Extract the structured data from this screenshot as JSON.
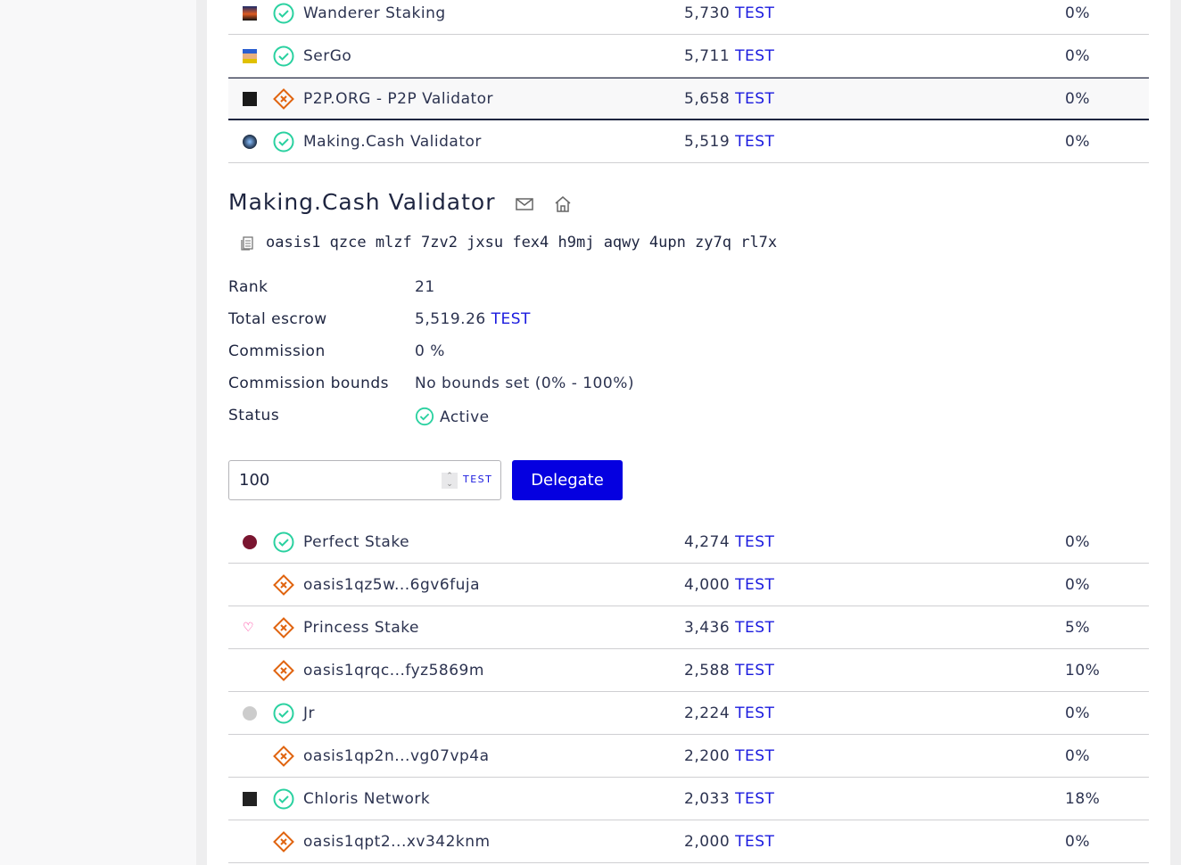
{
  "colors": {
    "accent": "#0500e0",
    "active": "#2ad1a0",
    "inactive": "#e0640f"
  },
  "validators_top": [
    {
      "name": "Wanderer Staking",
      "escrow": "5,730",
      "unit": "TEST",
      "commission": "0%",
      "status": "active",
      "avatar": "wanderer"
    },
    {
      "name": "SerGo",
      "escrow": "5,711",
      "unit": "TEST",
      "commission": "0%",
      "status": "active",
      "avatar": "sergo"
    },
    {
      "name": "P2P.ORG - P2P Validator",
      "escrow": "5,658",
      "unit": "TEST",
      "commission": "0%",
      "status": "inactive",
      "avatar": "p2p"
    },
    {
      "name": "Making.Cash Validator",
      "escrow": "5,519",
      "unit": "TEST",
      "commission": "0%",
      "status": "active",
      "avatar": "makingcash",
      "selected": true
    }
  ],
  "details": {
    "title": "Making.Cash Validator",
    "email_icon": "mail-icon",
    "website_icon": "home-icon",
    "address": "oasis1 qzce mlzf 7zv2 jxsu fex4 h9mj aqwy 4upn zy7q rl7x",
    "rows": [
      {
        "label": "Rank",
        "value": "21"
      },
      {
        "label": "Total escrow",
        "value": "5,519.26",
        "unit": "TEST"
      },
      {
        "label": "Commission",
        "value": "0 %"
      },
      {
        "label": "Commission bounds",
        "value": "No bounds set (0% - 100%)"
      },
      {
        "label": "Status",
        "value": "Active"
      }
    ],
    "amount": "100",
    "amount_unit": "TEST",
    "delegate_label": "Delegate"
  },
  "validators_bottom": [
    {
      "name": "Perfect Stake",
      "escrow": "4,274",
      "unit": "TEST",
      "commission": "0%",
      "status": "active",
      "avatar": "perfect"
    },
    {
      "name": "oasis1qz5w...6gv6fuja",
      "escrow": "4,000",
      "unit": "TEST",
      "commission": "0%",
      "status": "inactive"
    },
    {
      "name": "Princess Stake",
      "escrow": "3,436",
      "unit": "TEST",
      "commission": "5%",
      "status": "inactive",
      "avatar": "heart"
    },
    {
      "name": "oasis1qrqc...fyz5869m",
      "escrow": "2,588",
      "unit": "TEST",
      "commission": "10%",
      "status": "inactive"
    },
    {
      "name": "Jr",
      "escrow": "2,224",
      "unit": "TEST",
      "commission": "0%",
      "status": "active",
      "avatar": "jr"
    },
    {
      "name": "oasis1qp2n...vg07vp4a",
      "escrow": "2,200",
      "unit": "TEST",
      "commission": "0%",
      "status": "inactive"
    },
    {
      "name": "Chloris Network",
      "escrow": "2,033",
      "unit": "TEST",
      "commission": "18%",
      "status": "active",
      "avatar": "chloris"
    },
    {
      "name": "oasis1qpt2...xv342knm",
      "escrow": "2,000",
      "unit": "TEST",
      "commission": "0%",
      "status": "inactive"
    }
  ]
}
